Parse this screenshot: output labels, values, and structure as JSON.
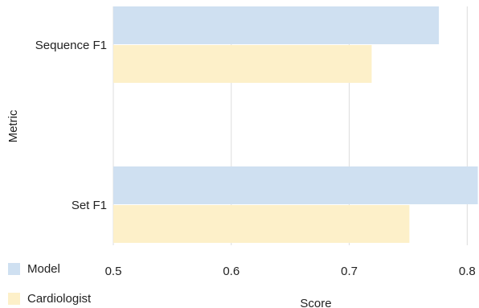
{
  "chart_data": {
    "type": "bar",
    "orientation": "horizontal",
    "categories": [
      "Sequence F1",
      "Set F1"
    ],
    "series": [
      {
        "name": "Model",
        "values": [
          0.776,
          0.809
        ],
        "color": "#cfe0f1"
      },
      {
        "name": "Cardiologist",
        "values": [
          0.719,
          0.751
        ],
        "color": "#fdf0c9"
      }
    ],
    "xlabel": "Score",
    "ylabel": "Metric",
    "xlim": [
      0.5,
      0.81
    ],
    "xticks": [
      0.5,
      0.6,
      0.7,
      0.8
    ],
    "xtick_labels": [
      "0.5",
      "0.6",
      "0.7",
      "0.8"
    ],
    "grid": true,
    "legend_position": "bottom-left"
  }
}
